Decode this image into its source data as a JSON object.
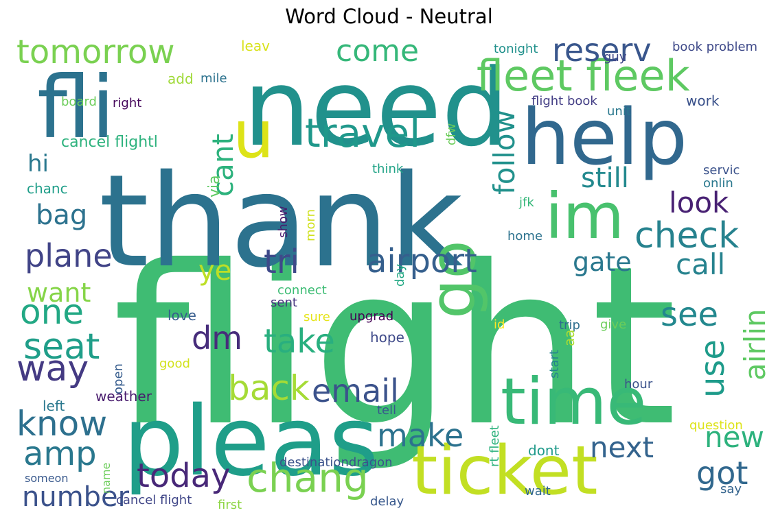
{
  "title": "Word Cloud - Neutral",
  "words": [
    {
      "text": "flight",
      "color": "#3fbc73"
    },
    {
      "text": "thank",
      "color": "#2c728e"
    },
    {
      "text": "need",
      "color": "#21918c"
    },
    {
      "text": "pleas",
      "color": "#1f9e89"
    },
    {
      "text": "help",
      "color": "#31688e"
    },
    {
      "text": "fli",
      "color": "#2c728e"
    },
    {
      "text": "ticket",
      "color": "#c2df23"
    },
    {
      "text": "time",
      "color": "#38b977"
    },
    {
      "text": "im",
      "color": "#48c16e"
    },
    {
      "text": "go",
      "color": "#52c569"
    },
    {
      "text": "u",
      "color": "#dde318"
    },
    {
      "text": "fleet fleek",
      "color": "#5ec962"
    },
    {
      "text": "tomorrow",
      "color": "#7ad151"
    },
    {
      "text": "travel",
      "color": "#1f988b"
    },
    {
      "text": "reserv",
      "color": "#39568c"
    },
    {
      "text": "come",
      "color": "#35b779"
    },
    {
      "text": "chang",
      "color": "#7ad151"
    },
    {
      "text": "check",
      "color": "#26828e"
    },
    {
      "text": "airport",
      "color": "#355f8d"
    },
    {
      "text": "tri",
      "color": "#3e4989"
    },
    {
      "text": "today",
      "color": "#482878"
    },
    {
      "text": "amp",
      "color": "#2a788e"
    },
    {
      "text": "know",
      "color": "#2d708e"
    },
    {
      "text": "way",
      "color": "#443a83"
    },
    {
      "text": "seat",
      "color": "#1f9e89"
    },
    {
      "text": "one",
      "color": "#22a884"
    },
    {
      "text": "plane",
      "color": "#414487"
    },
    {
      "text": "email",
      "color": "#3b528b"
    },
    {
      "text": "back",
      "color": "#a5db36"
    },
    {
      "text": "make",
      "color": "#2c728e"
    },
    {
      "text": "dm",
      "color": "#472d7b"
    },
    {
      "text": "take",
      "color": "#29af7f"
    },
    {
      "text": "number",
      "color": "#3b528b"
    },
    {
      "text": "got",
      "color": "#31688e"
    },
    {
      "text": "next",
      "color": "#33638d"
    },
    {
      "text": "new",
      "color": "#2db27d"
    },
    {
      "text": "airlin",
      "color": "#5ec962"
    },
    {
      "text": "use",
      "color": "#1e9b8a"
    },
    {
      "text": "see",
      "color": "#23888e"
    },
    {
      "text": "call",
      "color": "#26828e"
    },
    {
      "text": "gate",
      "color": "#2a788e"
    },
    {
      "text": "look",
      "color": "#482173"
    },
    {
      "text": "still",
      "color": "#23898e"
    },
    {
      "text": "cant",
      "color": "#2db27d"
    },
    {
      "text": "follow",
      "color": "#21918c"
    },
    {
      "text": "ye",
      "color": "#bddf26"
    },
    {
      "text": "want",
      "color": "#86d549"
    },
    {
      "text": "bag",
      "color": "#2c728e"
    },
    {
      "text": "hi",
      "color": "#2a788e"
    },
    {
      "text": "cancel flightl",
      "color": "#2db27d"
    },
    {
      "text": "chanc",
      "color": "#1f9e89"
    },
    {
      "text": "leav",
      "color": "#d8e219"
    },
    {
      "text": "add",
      "color": "#a0da39"
    },
    {
      "text": "mile",
      "color": "#2c728e"
    },
    {
      "text": "board",
      "color": "#6ccd5a"
    },
    {
      "text": "right",
      "color": "#46085c"
    },
    {
      "text": "tonight",
      "color": "#21918c"
    },
    {
      "text": "guy",
      "color": "#3f4788"
    },
    {
      "text": "book problem",
      "color": "#3e4989"
    },
    {
      "text": "flight book",
      "color": "#433e85"
    },
    {
      "text": "unit",
      "color": "#2a788e"
    },
    {
      "text": "work",
      "color": "#3b528b"
    },
    {
      "text": "dfw",
      "color": "#6ccd5a"
    },
    {
      "text": "via",
      "color": "#5ec962"
    },
    {
      "text": "think",
      "color": "#20a386"
    },
    {
      "text": "servic",
      "color": "#3b528b"
    },
    {
      "text": "onlin",
      "color": "#2a788e"
    },
    {
      "text": "jfk",
      "color": "#35b779"
    },
    {
      "text": "show",
      "color": "#481b6d"
    },
    {
      "text": "morn",
      "color": "#d0e11c"
    },
    {
      "text": "home",
      "color": "#2c728e"
    },
    {
      "text": "day",
      "color": "#22a884"
    },
    {
      "text": "connect",
      "color": "#3dbc74"
    },
    {
      "text": "sent",
      "color": "#46337f"
    },
    {
      "text": "love",
      "color": "#365c8d"
    },
    {
      "text": "sure",
      "color": "#e5e419"
    },
    {
      "text": "upgrad",
      "color": "#440154"
    },
    {
      "text": "id",
      "color": "#fde725"
    },
    {
      "text": "trip",
      "color": "#2e6e8e"
    },
    {
      "text": "give",
      "color": "#6ccd5a"
    },
    {
      "text": "hope",
      "color": "#3e4989"
    },
    {
      "text": "aa",
      "color": "#addc30"
    },
    {
      "text": "start",
      "color": "#25848e"
    },
    {
      "text": "open",
      "color": "#365c8d"
    },
    {
      "text": "good",
      "color": "#d2e21b"
    },
    {
      "text": "left",
      "color": "#2a788e"
    },
    {
      "text": "weather",
      "color": "#481b6d"
    },
    {
      "text": "hour",
      "color": "#3b528b"
    },
    {
      "text": "tell",
      "color": "#38588c"
    },
    {
      "text": "question",
      "color": "#dde318"
    },
    {
      "text": "rt fleet",
      "color": "#2db27d"
    },
    {
      "text": "dont",
      "color": "#1f9a8a"
    },
    {
      "text": "destinationdragon",
      "color": "#3b528b"
    },
    {
      "text": "name",
      "color": "#6ccd5a"
    },
    {
      "text": "someon",
      "color": "#38588c"
    },
    {
      "text": "cancel flight",
      "color": "#404688"
    },
    {
      "text": "first",
      "color": "#8ed645"
    },
    {
      "text": "delay",
      "color": "#38588c"
    },
    {
      "text": "wait",
      "color": "#31688e"
    },
    {
      "text": "say",
      "color": "#33638d"
    }
  ]
}
